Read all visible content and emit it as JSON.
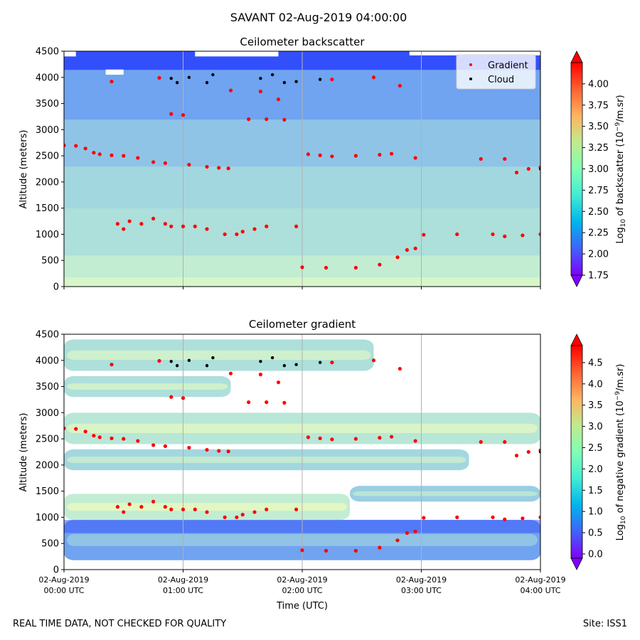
{
  "figure": {
    "suptitle": "SAVANT 02-Aug-2019 04:00:00",
    "footer_left": "REAL TIME DATA, NOT CHECKED FOR QUALITY",
    "footer_right": "Site: ISS1"
  },
  "chart_data": [
    {
      "type": "heatmap",
      "title": "Ceilometer backscatter",
      "ylabel": "Altitude (meters)",
      "xlabel": "",
      "x_ticks": [
        [
          "02-Aug-2019",
          "00:00 UTC"
        ],
        [
          "02-Aug-2019",
          "01:00 UTC"
        ],
        [
          "02-Aug-2019",
          "02:00 UTC"
        ],
        [
          "02-Aug-2019",
          "03:00 UTC"
        ],
        [
          "02-Aug-2019",
          "04:00 UTC"
        ]
      ],
      "x_tick_labels_visible": false,
      "xlim_hours_utc": [
        0,
        4
      ],
      "ylim": [
        0,
        4500
      ],
      "y_ticks": [
        0,
        500,
        1000,
        1500,
        2000,
        2500,
        3000,
        3500,
        4000,
        4500
      ],
      "grid": "vertical lines at hourly ticks",
      "colormap": "rainbow",
      "colorbar": {
        "label": "Log10 of backscatter (10^-9/m.sr)",
        "min": 1.75,
        "max": 4.25,
        "ticks": [
          "1.75",
          "2.00",
          "2.25",
          "2.50",
          "2.75",
          "3.00",
          "3.25",
          "3.50",
          "3.75",
          "4.00"
        ]
      },
      "legend": {
        "placement": "top-right",
        "entries": [
          {
            "label": "Gradient",
            "color": "#ff0000"
          },
          {
            "label": "Cloud",
            "color": "#000000"
          }
        ]
      },
      "field_rows": [
        {
          "alt_range": [
            0,
            180
          ],
          "value": 2.8
        },
        {
          "alt_range": [
            180,
            600
          ],
          "value": 2.7
        },
        {
          "alt_range": [
            600,
            1500
          ],
          "value": 2.6
        },
        {
          "alt_range": [
            1500,
            2300
          ],
          "value": 2.55
        },
        {
          "alt_range": [
            2300,
            3200
          ],
          "value": 2.45
        },
        {
          "alt_range": [
            3200,
            4150
          ],
          "value": 2.3
        },
        {
          "alt_range": [
            4150,
            4500
          ],
          "value": 2.0
        }
      ],
      "gradient_series": [
        {
          "name": "Gradient",
          "points": [
            [
              0.0,
              2700
            ],
            [
              0.1,
              2690
            ],
            [
              0.18,
              2640
            ],
            [
              0.25,
              2560
            ],
            [
              0.3,
              2530
            ],
            [
              0.4,
              2510
            ],
            [
              0.5,
              2500
            ],
            [
              0.62,
              2460
            ],
            [
              0.75,
              2380
            ],
            [
              0.85,
              2360
            ],
            [
              1.05,
              2330
            ],
            [
              1.2,
              2290
            ],
            [
              1.3,
              2270
            ],
            [
              1.38,
              2260
            ],
            [
              2.05,
              2530
            ],
            [
              2.15,
              2510
            ],
            [
              2.25,
              2490
            ],
            [
              2.45,
              2500
            ],
            [
              2.65,
              2520
            ],
            [
              2.75,
              2540
            ],
            [
              2.95,
              2460
            ],
            [
              3.5,
              2440
            ],
            [
              3.7,
              2440
            ],
            [
              3.8,
              2180
            ],
            [
              3.9,
              2250
            ],
            [
              4.0,
              2280
            ],
            [
              0.45,
              1200
            ],
            [
              0.5,
              1100
            ],
            [
              0.55,
              1250
            ],
            [
              0.65,
              1200
            ],
            [
              0.75,
              1300
            ],
            [
              0.85,
              1200
            ],
            [
              0.9,
              1150
            ],
            [
              1.0,
              1150
            ],
            [
              1.1,
              1150
            ],
            [
              1.2,
              1100
            ],
            [
              1.35,
              1000
            ],
            [
              1.45,
              1000
            ],
            [
              1.5,
              1050
            ],
            [
              1.6,
              1100
            ],
            [
              1.7,
              1150
            ],
            [
              1.95,
              1150
            ],
            [
              2.0,
              370
            ],
            [
              2.2,
              360
            ],
            [
              2.45,
              360
            ],
            [
              2.65,
              420
            ],
            [
              2.8,
              560
            ],
            [
              2.88,
              700
            ],
            [
              2.95,
              730
            ],
            [
              3.02,
              990
            ],
            [
              3.3,
              1000
            ],
            [
              3.6,
              1000
            ],
            [
              3.7,
              960
            ],
            [
              3.85,
              980
            ],
            [
              4.0,
              1000
            ],
            [
              0.4,
              3920
            ],
            [
              0.8,
              3990
            ],
            [
              1.4,
              3750
            ],
            [
              1.65,
              3730
            ],
            [
              2.25,
              3960
            ],
            [
              2.6,
              4000
            ],
            [
              2.82,
              3840
            ],
            [
              0.9,
              3300
            ],
            [
              1.0,
              3280
            ],
            [
              1.55,
              3200
            ],
            [
              1.7,
              3200
            ],
            [
              1.85,
              3190
            ],
            [
              1.8,
              3580
            ]
          ]
        }
      ],
      "cloud_series": [
        {
          "name": "Cloud",
          "points": [
            [
              0.9,
              3980
            ],
            [
              0.95,
              3900
            ],
            [
              1.05,
              4000
            ],
            [
              1.2,
              3900
            ],
            [
              1.25,
              4050
            ],
            [
              1.65,
              3980
            ],
            [
              1.75,
              4050
            ],
            [
              1.85,
              3900
            ],
            [
              1.95,
              3920
            ],
            [
              2.15,
              3960
            ],
            [
              4.0,
              2250
            ]
          ]
        }
      ]
    },
    {
      "type": "heatmap",
      "title": "Ceilometer gradient",
      "ylabel": "Altitude (meters)",
      "xlabel": "Time (UTC)",
      "x_ticks": [
        [
          "02-Aug-2019",
          "00:00 UTC"
        ],
        [
          "02-Aug-2019",
          "01:00 UTC"
        ],
        [
          "02-Aug-2019",
          "02:00 UTC"
        ],
        [
          "02-Aug-2019",
          "03:00 UTC"
        ],
        [
          "02-Aug-2019",
          "04:00 UTC"
        ]
      ],
      "x_tick_labels_visible": true,
      "xlim_hours_utc": [
        0,
        4
      ],
      "ylim": [
        0,
        4500
      ],
      "y_ticks": [
        0,
        500,
        1000,
        1500,
        2000,
        2500,
        3000,
        3500,
        4000,
        4500
      ],
      "grid": "vertical lines at hourly ticks",
      "colormap": "rainbow",
      "colorbar": {
        "label": "Log10 of negative gradient (10^-9/m.sr)",
        "min": -0.1,
        "max": 4.9,
        "ticks": [
          "0.0",
          "0.5",
          "1.0",
          "1.5",
          "2.0",
          "2.5",
          "3.0",
          "3.5",
          "4.0",
          "4.5"
        ]
      },
      "bands": [
        {
          "alt_range": [
            180,
            950
          ],
          "hours": [
            0.0,
            4.0
          ],
          "value": 1.0
        },
        {
          "alt_range": [
            950,
            1450
          ],
          "hours": [
            0.0,
            2.4
          ],
          "value": 1.8
        },
        {
          "alt_range": [
            1300,
            1600
          ],
          "hours": [
            2.4,
            4.0
          ],
          "value": 1.4
        },
        {
          "alt_range": [
            1900,
            2300
          ],
          "hours": [
            0.0,
            3.4
          ],
          "value": 1.5
        },
        {
          "alt_range": [
            2400,
            3000
          ],
          "hours": [
            0.0,
            4.0
          ],
          "value": 1.7
        },
        {
          "alt_range": [
            3300,
            3700
          ],
          "hours": [
            0.0,
            1.4
          ],
          "value": 1.6
        },
        {
          "alt_range": [
            3800,
            4400
          ],
          "hours": [
            0.0,
            2.6
          ],
          "value": 1.6
        }
      ]
    }
  ]
}
